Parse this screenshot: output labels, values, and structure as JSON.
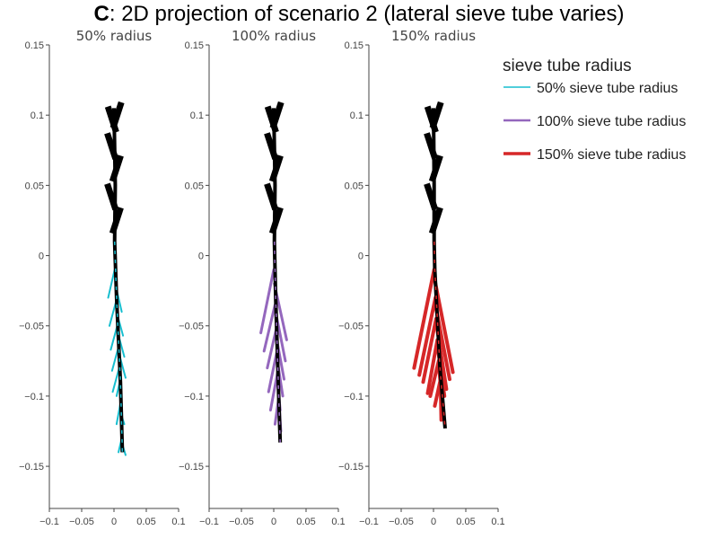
{
  "title": {
    "prefix": "C",
    "text": ": 2D projection of scenario 2 (lateral sieve tube varies)"
  },
  "chart_data": {
    "type": "line",
    "xlim": [
      -0.1,
      0.1
    ],
    "ylim": [
      -0.18,
      0.15
    ],
    "x_ticks": [
      -0.1,
      -0.05,
      0,
      0.05,
      0.1
    ],
    "x_tick_labels": [
      "−0.1",
      "−0.05",
      "0",
      "0.05",
      "0.1"
    ],
    "y_ticks": [
      0.15,
      0.1,
      0.05,
      0,
      -0.05,
      -0.1,
      -0.15
    ],
    "y_tick_labels": [
      "0.15",
      "0.1",
      "0.05",
      "0",
      "−0.05",
      "−0.1",
      "−0.15"
    ],
    "grid": false,
    "legend": {
      "title": "sieve tube radius",
      "placement": "top-right",
      "entries": [
        {
          "label": "50% sieve tube radius",
          "color": "#17becf",
          "width": 1
        },
        {
          "label": "100% sieve tube radius",
          "color": "#9467bd",
          "width": 2
        },
        {
          "label": "150% sieve tube radius",
          "color": "#d62728",
          "width": 3
        }
      ]
    },
    "panels": [
      {
        "subtitle": "50% radius",
        "root_color": "#17becf",
        "root_width": 1,
        "main_stem": [
          [
            0,
            0.105
          ],
          [
            0.002,
            0.05
          ],
          [
            0.001,
            0.01
          ],
          [
            0.004,
            -0.03
          ],
          [
            0.01,
            -0.09
          ],
          [
            0.013,
            -0.14
          ]
        ],
        "laterals": [
          [
            [
              0.001,
              -0.01
            ],
            [
              -0.009,
              -0.03
            ]
          ],
          [
            [
              0.002,
              -0.02
            ],
            [
              0.012,
              -0.04
            ]
          ],
          [
            [
              0.003,
              -0.033
            ],
            [
              -0.007,
              -0.05
            ]
          ],
          [
            [
              0.004,
              -0.04
            ],
            [
              0.014,
              -0.057
            ]
          ],
          [
            [
              0.005,
              -0.05
            ],
            [
              -0.005,
              -0.067
            ]
          ],
          [
            [
              0.006,
              -0.055
            ],
            [
              0.016,
              -0.072
            ]
          ],
          [
            [
              0.007,
              -0.065
            ],
            [
              -0.003,
              -0.082
            ]
          ],
          [
            [
              0.008,
              -0.07
            ],
            [
              0.018,
              -0.087
            ]
          ],
          [
            [
              0.008,
              -0.08
            ],
            [
              -0.002,
              -0.097
            ]
          ],
          [
            [
              0.009,
              -0.09
            ],
            [
              0.004,
              -0.1
            ]
          ],
          [
            [
              0.01,
              -0.105
            ],
            [
              0.004,
              -0.12
            ]
          ],
          [
            [
              0.011,
              -0.113
            ],
            [
              0.016,
              -0.12
            ]
          ],
          [
            [
              0.012,
              -0.13
            ],
            [
              0.007,
              -0.14
            ]
          ],
          [
            [
              0.012,
              -0.133
            ],
            [
              0.018,
              -0.142
            ]
          ]
        ]
      },
      {
        "subtitle": "100% radius",
        "root_color": "#9467bd",
        "root_width": 2,
        "main_stem": [
          [
            0,
            0.105
          ],
          [
            0.002,
            0.05
          ],
          [
            0.001,
            0.01
          ],
          [
            0.003,
            -0.03
          ],
          [
            0.007,
            -0.09
          ],
          [
            0.01,
            -0.133
          ]
        ],
        "laterals": [
          [
            [
              0,
              -0.01
            ],
            [
              -0.02,
              -0.055
            ]
          ],
          [
            [
              0.001,
              -0.02
            ],
            [
              0.02,
              -0.06
            ]
          ],
          [
            [
              0.002,
              -0.035
            ],
            [
              -0.015,
              -0.068
            ]
          ],
          [
            [
              0.003,
              -0.04
            ],
            [
              0.018,
              -0.075
            ]
          ],
          [
            [
              0.004,
              -0.052
            ],
            [
              -0.01,
              -0.08
            ]
          ],
          [
            [
              0.004,
              -0.058
            ],
            [
              0.016,
              -0.088
            ]
          ],
          [
            [
              0.005,
              -0.068
            ],
            [
              -0.008,
              -0.097
            ]
          ],
          [
            [
              0.005,
              -0.073
            ],
            [
              0.014,
              -0.1
            ]
          ],
          [
            [
              0.006,
              -0.083
            ],
            [
              -0.005,
              -0.11
            ]
          ],
          [
            [
              0.007,
              -0.095
            ],
            [
              0.01,
              -0.11
            ]
          ],
          [
            [
              0.008,
              -0.1
            ],
            [
              0.002,
              -0.12
            ]
          ],
          [
            [
              0.009,
              -0.11
            ],
            [
              0.011,
              -0.125
            ]
          ]
        ]
      },
      {
        "subtitle": "150% radius",
        "root_color": "#d62728",
        "root_width": 3,
        "main_stem": [
          [
            0,
            0.105
          ],
          [
            0.001,
            0.05
          ],
          [
            0.001,
            0.01
          ],
          [
            0.002,
            -0.01
          ],
          [
            0.01,
            -0.08
          ],
          [
            0.018,
            -0.123
          ]
        ],
        "laterals": [
          [
            [
              0.001,
              -0.01
            ],
            [
              -0.03,
              -0.08
            ]
          ],
          [
            [
              0.001,
              -0.015
            ],
            [
              0.03,
              -0.083
            ]
          ],
          [
            [
              0.003,
              -0.03
            ],
            [
              -0.022,
              -0.085
            ]
          ],
          [
            [
              0.003,
              -0.035
            ],
            [
              0.025,
              -0.088
            ]
          ],
          [
            [
              0.004,
              -0.045
            ],
            [
              -0.016,
              -0.09
            ]
          ],
          [
            [
              0.005,
              -0.05
            ],
            [
              0.02,
              -0.095
            ]
          ],
          [
            [
              0.006,
              -0.06
            ],
            [
              -0.009,
              -0.098
            ]
          ],
          [
            [
              0.007,
              -0.067
            ],
            [
              0.017,
              -0.1
            ]
          ],
          [
            [
              0.008,
              -0.075
            ],
            [
              -0.005,
              -0.1
            ]
          ],
          [
            [
              0.009,
              -0.082
            ],
            [
              0.014,
              -0.108
            ]
          ],
          [
            [
              0.01,
              -0.09
            ],
            [
              0.002,
              -0.107
            ]
          ],
          [
            [
              0.011,
              -0.093
            ],
            [
              0.012,
              -0.117
            ]
          ]
        ]
      }
    ],
    "shoot": {
      "color": "#000000",
      "leaves": [
        {
          "cx": -0.003,
          "cy": 0.097,
          "angle": -18
        },
        {
          "cx": 0.005,
          "cy": 0.1,
          "angle": 18
        },
        {
          "cx": -0.004,
          "cy": 0.078,
          "angle": -18
        },
        {
          "cx": 0.004,
          "cy": 0.062,
          "angle": 18
        },
        {
          "cx": -0.004,
          "cy": 0.042,
          "angle": -18
        },
        {
          "cx": 0.004,
          "cy": 0.025,
          "angle": 18
        }
      ]
    }
  }
}
